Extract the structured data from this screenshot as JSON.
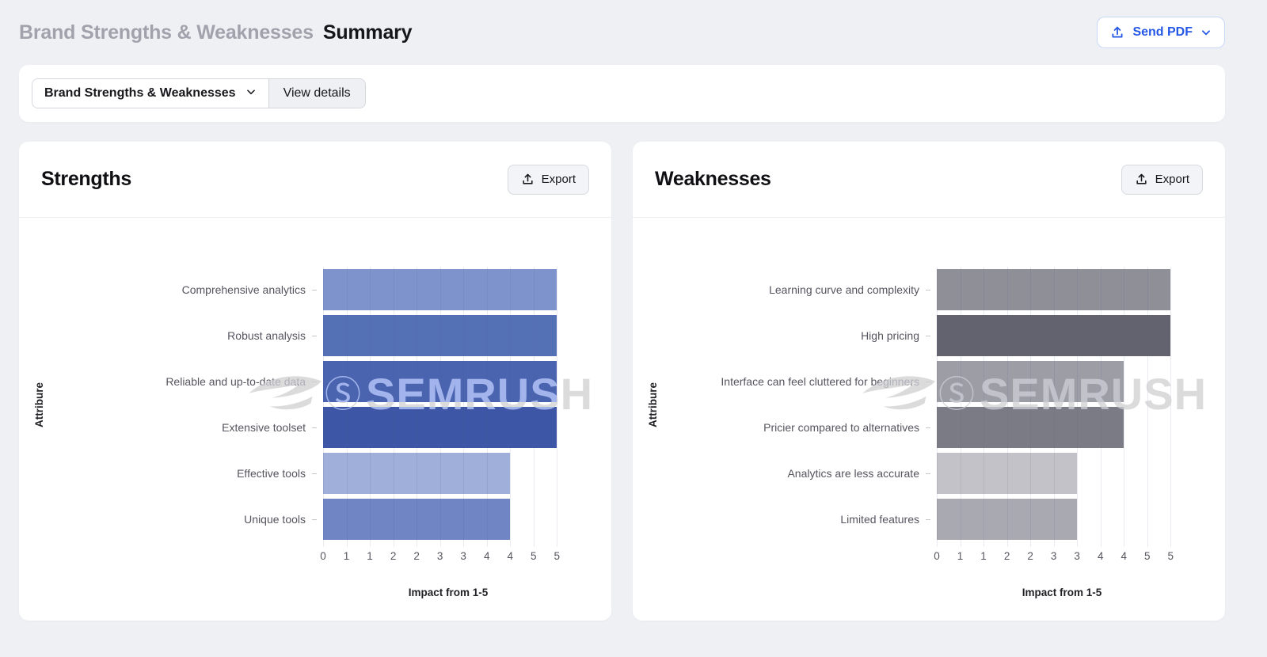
{
  "header": {
    "title_gray": "Brand Strengths & Weaknesses",
    "title_black": "Summary",
    "send_pdf_label": "Send PDF"
  },
  "toolbar": {
    "dropdown_label": "Brand Strengths & Weaknesses",
    "view_details_label": "View details"
  },
  "cards": [
    {
      "title": "Strengths",
      "export_label": "Export"
    },
    {
      "title": "Weaknesses",
      "export_label": "Export"
    }
  ],
  "watermark": {
    "symbol": "Ⓢ",
    "text": "SEMRUSH"
  },
  "colors": {
    "page_bg": "#eef0f4",
    "card_bg": "#ffffff",
    "accent_blue": "#2457e5",
    "accent_blue_border": "#c9d8f8",
    "muted_title": "#a2a2ad",
    "axis_text": "#55555f",
    "watermark": "#cdcfd9"
  },
  "chart_data": [
    {
      "type": "bar",
      "orientation": "horizontal",
      "title": "Strengths",
      "categories": [
        "Comprehensive analytics",
        "Robust analysis",
        "Reliable and up-to-date data",
        "Extensive toolset",
        "Effective tools",
        "Unique tools"
      ],
      "values": [
        5,
        5,
        5,
        5,
        4,
        4
      ],
      "bar_colors": [
        "#7e93cb",
        "#5571b6",
        "#4a64b0",
        "#3d56a6",
        "#9fafda",
        "#6f85c4"
      ],
      "xlabel": "Impact from 1-5",
      "ylabel": "Attribure",
      "xlim": [
        0,
        5.35
      ],
      "xtick_positions": [
        0,
        0.5,
        1,
        1.5,
        2,
        2.5,
        3,
        3.5,
        4,
        4.5,
        5
      ],
      "xtick_labels": [
        "0",
        "1",
        "1",
        "2",
        "2",
        "3",
        "3",
        "4",
        "4",
        "5",
        "5"
      ],
      "grid": true,
      "legend": false
    },
    {
      "type": "bar",
      "orientation": "horizontal",
      "title": "Weaknesses",
      "categories": [
        "Learning curve and complexity",
        "High pricing",
        "Interface can feel cluttered for beginners",
        "Pricier compared to alternatives",
        "Analytics are less accurate",
        "Limited features"
      ],
      "values": [
        5,
        5,
        4,
        4,
        3,
        3
      ],
      "bar_colors": [
        "#8f8f98",
        "#636370",
        "#9d9da5",
        "#7b7b86",
        "#c2c2c8",
        "#a9a9b1"
      ],
      "xlabel": "Impact from 1-5",
      "ylabel": "Attribure",
      "xlim": [
        0,
        5.35
      ],
      "xtick_positions": [
        0,
        0.5,
        1,
        1.5,
        2,
        2.5,
        3,
        3.5,
        4,
        4.5,
        5
      ],
      "xtick_labels": [
        "0",
        "1",
        "1",
        "2",
        "2",
        "3",
        "3",
        "4",
        "4",
        "5",
        "5"
      ],
      "grid": true,
      "legend": false
    }
  ]
}
